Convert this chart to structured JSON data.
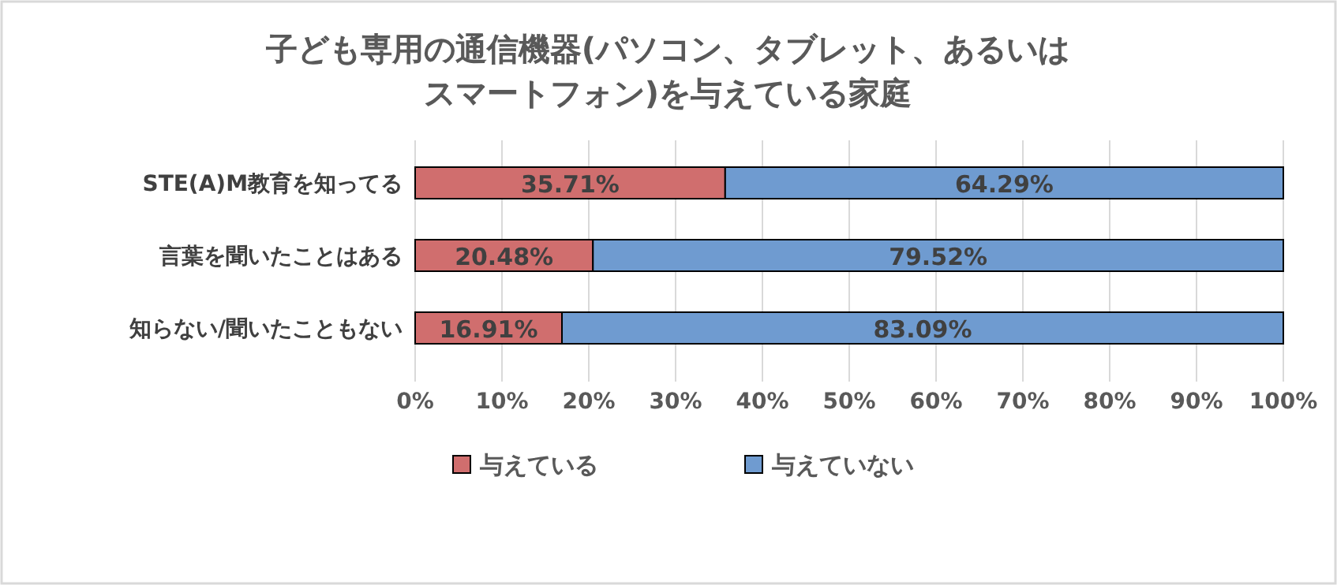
{
  "chart_data": {
    "type": "bar",
    "orientation": "horizontal",
    "stacked": true,
    "title": "子ども専用の通信機器(パソコン、タブレット、あるいはスマートフォン)を与えている家庭",
    "categories": [
      "STE(A)M教育を知ってる",
      "言葉を聞いたことはある",
      "知らない/聞いたこともない"
    ],
    "series": [
      {
        "name": "与えている",
        "color": "#d06e6e",
        "values": [
          35.71,
          20.48,
          16.91
        ],
        "value_labels": [
          "35.71%",
          "20.48%",
          "16.91%"
        ]
      },
      {
        "name": "与えていない",
        "color": "#6f9bd0",
        "values": [
          64.29,
          79.52,
          83.09
        ],
        "value_labels": [
          "64.29%",
          "79.52%",
          "83.09%"
        ]
      }
    ],
    "xlim": [
      0,
      100
    ],
    "xticks": [
      {
        "value": 0,
        "label": "0%"
      },
      {
        "value": 10,
        "label": "10%"
      },
      {
        "value": 20,
        "label": "20%"
      },
      {
        "value": 30,
        "label": "30%"
      },
      {
        "value": 40,
        "label": "40%"
      },
      {
        "value": 50,
        "label": "50%"
      },
      {
        "value": 60,
        "label": "60%"
      },
      {
        "value": 70,
        "label": "70%"
      },
      {
        "value": 80,
        "label": "80%"
      },
      {
        "value": 90,
        "label": "90%"
      },
      {
        "value": 100,
        "label": "100%"
      }
    ],
    "grid": "x",
    "legend": "bottom"
  }
}
